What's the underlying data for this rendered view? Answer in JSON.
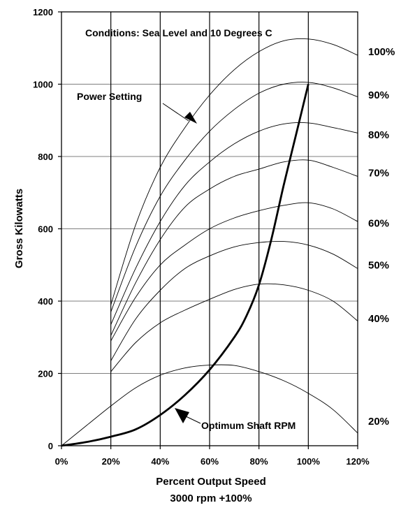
{
  "chart_data": {
    "type": "line",
    "xlabel": "Percent Output Speed",
    "xlabel_sub": "3000 rpm +100%",
    "ylabel": "Gross Kilowatts",
    "xlim": [
      0,
      120
    ],
    "ylim": [
      0,
      1200
    ],
    "x_ticks": [
      0,
      20,
      40,
      60,
      80,
      100,
      120
    ],
    "x_tick_labels": [
      "0%",
      "20%",
      "40%",
      "60%",
      "80%",
      "100%",
      "120%"
    ],
    "y_ticks": [
      0,
      200,
      400,
      600,
      800,
      1000,
      1200
    ],
    "y_tick_labels": [
      "0",
      "200",
      "400",
      "600",
      "800",
      "1000",
      "1200"
    ],
    "grid": true,
    "annotations": {
      "conditions": "Conditions: Sea Level and 10  Degrees C",
      "power_setting": "Power Setting",
      "optimum": "Optimum Shaft RPM"
    },
    "series": [
      {
        "name": "100%",
        "x": [
          20,
          30,
          40,
          50,
          60,
          70,
          80,
          90,
          100,
          110,
          120
        ],
        "y": [
          390,
          610,
          770,
          880,
          970,
          1040,
          1090,
          1120,
          1125,
          1110,
          1080
        ]
      },
      {
        "name": "90%",
        "x": [
          20,
          30,
          40,
          50,
          60,
          70,
          80,
          90,
          100,
          110,
          120
        ],
        "y": [
          370,
          550,
          690,
          790,
          870,
          930,
          975,
          1000,
          1005,
          990,
          965
        ]
      },
      {
        "name": "80%",
        "x": [
          20,
          30,
          40,
          50,
          60,
          70,
          80,
          90,
          100,
          110,
          120
        ],
        "y": [
          335,
          490,
          620,
          720,
          785,
          835,
          870,
          890,
          893,
          880,
          865
        ]
      },
      {
        "name": "70%",
        "x": [
          20,
          30,
          40,
          50,
          60,
          70,
          80,
          90,
          100,
          110,
          120
        ],
        "y": [
          305,
          450,
          570,
          660,
          710,
          745,
          765,
          785,
          790,
          770,
          745
        ]
      },
      {
        "name": "60%",
        "x": [
          20,
          30,
          40,
          50,
          60,
          70,
          80,
          90,
          100,
          110,
          120
        ],
        "y": [
          290,
          410,
          500,
          555,
          600,
          630,
          650,
          665,
          672,
          655,
          620
        ]
      },
      {
        "name": "50%",
        "x": [
          20,
          30,
          40,
          50,
          60,
          70,
          80,
          90,
          100,
          110,
          120
        ],
        "y": [
          235,
          350,
          430,
          490,
          525,
          550,
          562,
          565,
          555,
          530,
          490
        ]
      },
      {
        "name": "40%",
        "x": [
          20,
          30,
          40,
          50,
          60,
          70,
          80,
          90,
          100,
          110,
          120
        ],
        "y": [
          205,
          285,
          340,
          375,
          405,
          432,
          447,
          445,
          430,
          400,
          345
        ]
      },
      {
        "name": "20%",
        "x": [
          0,
          10,
          20,
          30,
          40,
          50,
          60,
          70,
          80,
          90,
          100,
          110,
          120
        ],
        "y": [
          0,
          55,
          110,
          160,
          195,
          215,
          223,
          222,
          205,
          180,
          145,
          100,
          35
        ]
      },
      {
        "name": "Optimum Shaft RPM",
        "x": [
          0,
          10,
          20,
          30,
          40,
          50,
          60,
          70,
          75,
          80,
          85,
          90,
          95,
          100
        ],
        "y": [
          0,
          10,
          25,
          45,
          85,
          140,
          210,
          300,
          360,
          445,
          570,
          720,
          860,
          1000
        ]
      }
    ],
    "power_labels": [
      {
        "text": "100%",
        "y": 1090
      },
      {
        "text": "90%",
        "y": 970
      },
      {
        "text": "80%",
        "y": 860
      },
      {
        "text": "70%",
        "y": 755
      },
      {
        "text": "60%",
        "y": 615
      },
      {
        "text": "50%",
        "y": 500
      },
      {
        "text": "40%",
        "y": 352
      },
      {
        "text": "20%",
        "y": 68
      }
    ]
  }
}
